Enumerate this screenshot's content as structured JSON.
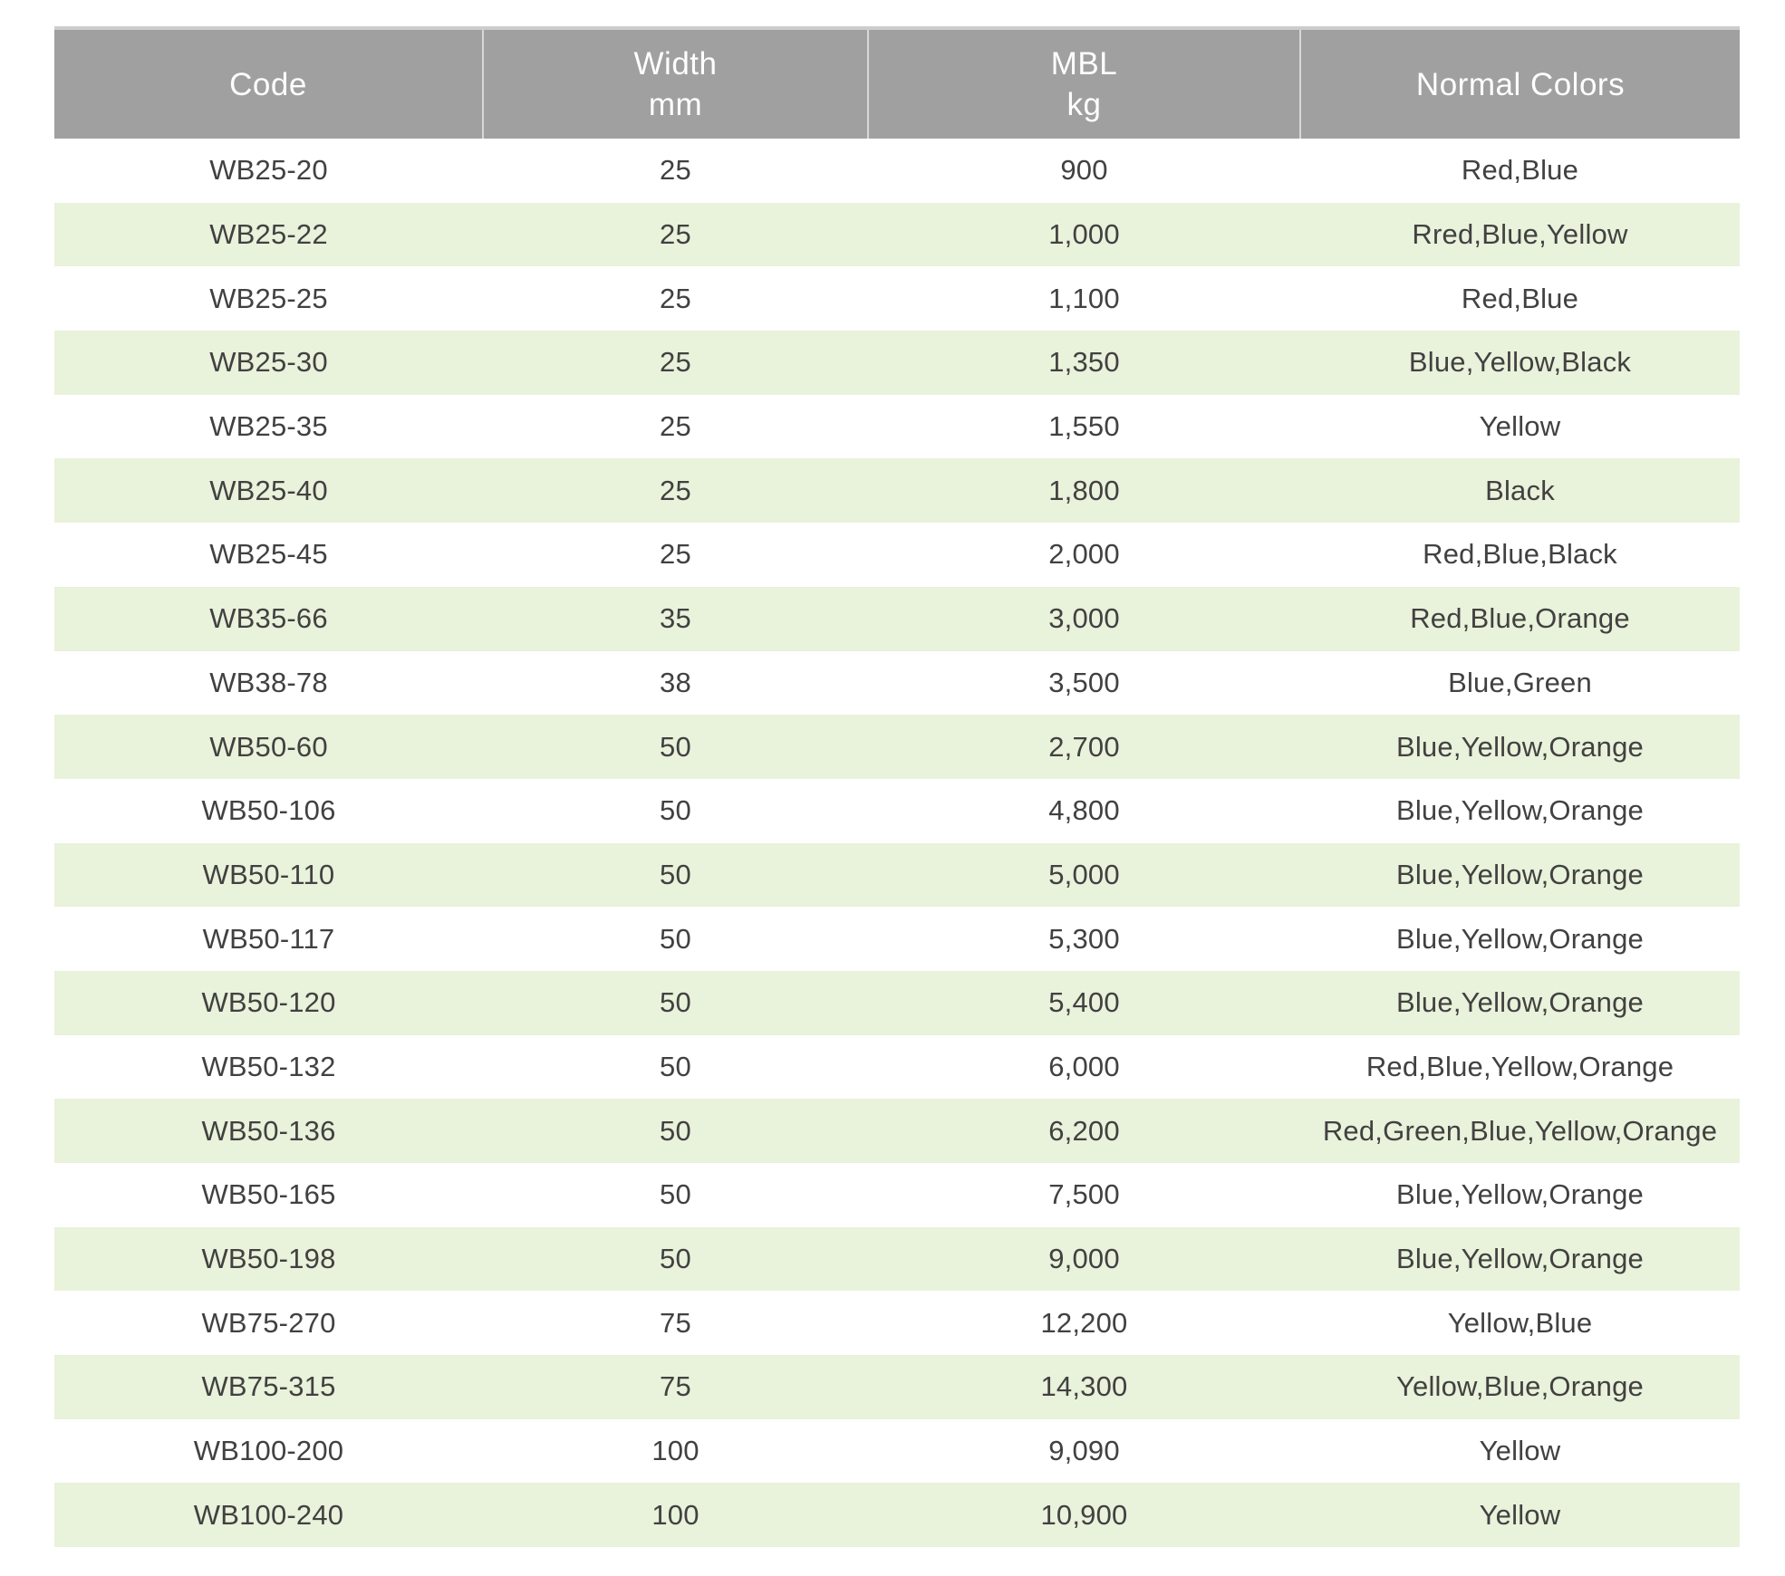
{
  "table": {
    "name": "Webbing specification table",
    "columns": [
      {
        "id": "code",
        "lines": [
          "Code"
        ]
      },
      {
        "id": "width_mm",
        "lines": [
          "Width",
          "mm"
        ]
      },
      {
        "id": "mbl_kg",
        "lines": [
          "MBL",
          "kg"
        ]
      },
      {
        "id": "normal_colors",
        "lines": [
          "Normal Colors"
        ]
      }
    ],
    "rows": [
      [
        "WB25-20",
        "25",
        "900",
        "Red,Blue"
      ],
      [
        "WB25-22",
        "25",
        "1,000",
        "Rred,Blue,Yellow"
      ],
      [
        "WB25-25",
        "25",
        "1,100",
        "Red,Blue"
      ],
      [
        "WB25-30",
        "25",
        "1,350",
        "Blue,Yellow,Black"
      ],
      [
        "WB25-35",
        "25",
        "1,550",
        "Yellow"
      ],
      [
        "WB25-40",
        "25",
        "1,800",
        "Black"
      ],
      [
        "WB25-45",
        "25",
        "2,000",
        "Red,Blue,Black"
      ],
      [
        "WB35-66",
        "35",
        "3,000",
        "Red,Blue,Orange"
      ],
      [
        "WB38-78",
        "38",
        "3,500",
        "Blue,Green"
      ],
      [
        "WB50-60",
        "50",
        "2,700",
        "Blue,Yellow,Orange"
      ],
      [
        "WB50-106",
        "50",
        "4,800",
        "Blue,Yellow,Orange"
      ],
      [
        "WB50-110",
        "50",
        "5,000",
        "Blue,Yellow,Orange"
      ],
      [
        "WB50-117",
        "50",
        "5,300",
        "Blue,Yellow,Orange"
      ],
      [
        "WB50-120",
        "50",
        "5,400",
        "Blue,Yellow,Orange"
      ],
      [
        "WB50-132",
        "50",
        "6,000",
        "Red,Blue,Yellow,Orange"
      ],
      [
        "WB50-136",
        "50",
        "6,200",
        "Red,Green,Blue,Yellow,Orange"
      ],
      [
        "WB50-165",
        "50",
        "7,500",
        "Blue,Yellow,Orange"
      ],
      [
        "WB50-198",
        "50",
        "9,000",
        "Blue,Yellow,Orange"
      ],
      [
        "WB75-270",
        "75",
        "12,200",
        "Yellow,Blue"
      ],
      [
        "WB75-315",
        "75",
        "14,300",
        "Yellow,Blue,Orange"
      ],
      [
        "WB100-200",
        "100",
        "9,090",
        "Yellow"
      ],
      [
        "WB100-240",
        "100",
        "10,900",
        "Yellow"
      ]
    ]
  },
  "colors": {
    "page_bg": "#ffffff",
    "header_bg": "#a0a0a0",
    "header_text": "#ffffff",
    "header_divider": "#d8d8d8",
    "top_border": "#cdcdcd",
    "row_bg": "#ffffff",
    "row_alt_bg": "#e9f2da",
    "body_text": "#414141"
  }
}
